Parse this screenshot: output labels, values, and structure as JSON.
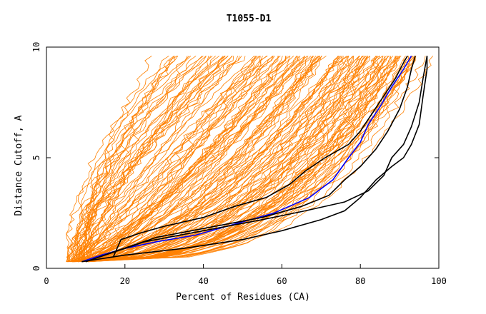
{
  "chart_data": {
    "type": "line",
    "title": "T1055-D1",
    "xlabel": "Percent of Residues (CA)",
    "ylabel": "Distance Cutoff, A",
    "xlim": [
      0,
      100
    ],
    "ylim": [
      0,
      10
    ],
    "x_ticks": [
      "0",
      "20",
      "40",
      "60",
      "80",
      "100"
    ],
    "y_ticks": [
      "0",
      "5",
      "10"
    ],
    "grid": false,
    "legend": "none",
    "colors": {
      "background_curves": "#ff8000",
      "highlight_black": "#000000",
      "highlight_blue": "#0000ff",
      "axes": "#000000"
    },
    "highlighted_series": [
      {
        "color": "#0000ff",
        "points": [
          [
            9,
            0.3
          ],
          [
            14,
            0.6
          ],
          [
            20,
            0.9
          ],
          [
            28,
            1.2
          ],
          [
            38,
            1.5
          ],
          [
            48,
            2.0
          ],
          [
            58,
            2.5
          ],
          [
            67,
            3.2
          ],
          [
            73,
            4.0
          ],
          [
            77,
            5.0
          ],
          [
            80,
            5.7
          ],
          [
            82,
            6.5
          ],
          [
            85,
            7.3
          ],
          [
            88,
            8.2
          ],
          [
            91,
            9.0
          ],
          [
            93,
            9.6
          ]
        ]
      },
      {
        "color": "#000000",
        "points": [
          [
            17,
            0.5
          ],
          [
            19,
            1.3
          ],
          [
            24,
            1.6
          ],
          [
            30,
            1.9
          ],
          [
            40,
            2.3
          ],
          [
            48,
            2.8
          ],
          [
            56,
            3.2
          ],
          [
            62,
            3.8
          ],
          [
            66,
            4.4
          ],
          [
            71,
            5.0
          ],
          [
            77,
            5.6
          ],
          [
            80,
            6.2
          ],
          [
            83,
            7.0
          ],
          [
            86,
            7.8
          ],
          [
            89,
            8.6
          ],
          [
            91,
            9.3
          ],
          [
            92,
            9.6
          ]
        ]
      },
      {
        "color": "#000000",
        "points": [
          [
            10,
            0.3
          ],
          [
            18,
            0.8
          ],
          [
            28,
            1.4
          ],
          [
            40,
            1.8
          ],
          [
            55,
            2.3
          ],
          [
            65,
            2.8
          ],
          [
            72,
            3.3
          ],
          [
            76,
            4.0
          ],
          [
            80,
            4.6
          ],
          [
            84,
            5.4
          ],
          [
            87,
            6.2
          ],
          [
            90,
            7.2
          ],
          [
            92,
            8.2
          ],
          [
            93,
            9.0
          ],
          [
            94,
            9.6
          ]
        ]
      },
      {
        "color": "#000000",
        "points": [
          [
            10,
            0.3
          ],
          [
            25,
            1.2
          ],
          [
            40,
            1.7
          ],
          [
            55,
            2.2
          ],
          [
            66,
            2.6
          ],
          [
            76,
            3.0
          ],
          [
            82,
            3.5
          ],
          [
            86,
            4.2
          ],
          [
            88,
            5.0
          ],
          [
            91,
            5.6
          ],
          [
            93,
            6.4
          ],
          [
            95,
            7.5
          ],
          [
            96,
            8.6
          ],
          [
            97,
            9.6
          ]
        ]
      },
      {
        "color": "#000000",
        "points": [
          [
            9,
            0.3
          ],
          [
            20,
            0.6
          ],
          [
            35,
            0.9
          ],
          [
            50,
            1.3
          ],
          [
            60,
            1.7
          ],
          [
            70,
            2.2
          ],
          [
            76,
            2.6
          ],
          [
            80,
            3.2
          ],
          [
            84,
            4.0
          ],
          [
            88,
            4.6
          ],
          [
            91,
            5.0
          ],
          [
            93,
            5.6
          ],
          [
            95,
            6.5
          ],
          [
            96,
            7.8
          ],
          [
            97,
            9.0
          ],
          [
            97,
            9.6
          ]
        ]
      }
    ]
  }
}
